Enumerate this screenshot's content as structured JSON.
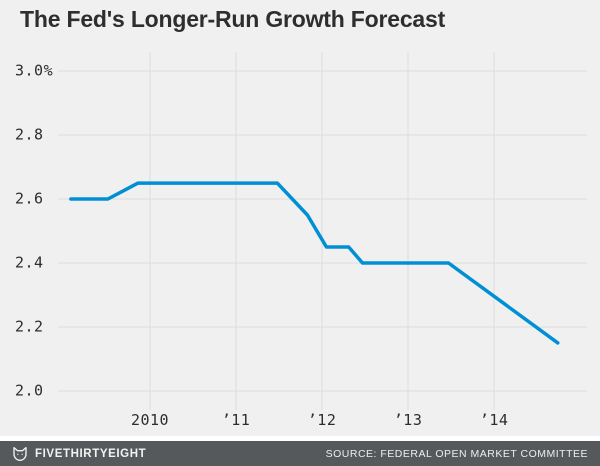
{
  "page": {
    "title": "The Fed's Longer-Run Growth Forecast"
  },
  "chart_data": {
    "type": "line",
    "title": "The Fed's Longer-Run Growth Forecast",
    "xlabel": "",
    "ylabel": "",
    "grid": true,
    "legend": "none",
    "xlim": [
      2008.93,
      2015.08
    ],
    "ylim": [
      1.94,
      3.06
    ],
    "x_ticks": [
      {
        "value": 2010,
        "label": "2010"
      },
      {
        "value": 2011,
        "label": "’11"
      },
      {
        "value": 2012,
        "label": "’12"
      },
      {
        "value": 2013,
        "label": "’13"
      },
      {
        "value": 2014,
        "label": "’14"
      }
    ],
    "y_ticks": [
      {
        "value": 3.0,
        "label": "3.0%"
      },
      {
        "value": 2.8,
        "label": "2.8"
      },
      {
        "value": 2.6,
        "label": "2.6"
      },
      {
        "value": 2.4,
        "label": "2.4"
      },
      {
        "value": 2.2,
        "label": "2.2"
      },
      {
        "value": 2.0,
        "label": "2.0"
      }
    ],
    "series": [
      {
        "color": "#008FD5",
        "points": [
          [
            2009.08,
            2.6
          ],
          [
            2009.51,
            2.6
          ],
          [
            2009.86,
            2.65
          ],
          [
            2011.48,
            2.65
          ],
          [
            2011.83,
            2.55
          ],
          [
            2012.05,
            2.45
          ],
          [
            2012.31,
            2.45
          ],
          [
            2012.47,
            2.4
          ],
          [
            2013.47,
            2.4
          ],
          [
            2014.74,
            2.15
          ]
        ]
      }
    ]
  },
  "footer": {
    "brand": "FIVETHIRTYEIGHT",
    "source": "SOURCE: FEDERAL OPEN MARKET COMMITTEE",
    "logo": "fox-icon"
  },
  "colors": {
    "background": "#F0F0F0",
    "gridline": "#DCDCDC",
    "line": "#008FD5",
    "title_text": "#2E2E2E",
    "tick_text": "#2D2D2D",
    "footer_bg": "#56595B",
    "footer_text": "#F2F2F2"
  }
}
